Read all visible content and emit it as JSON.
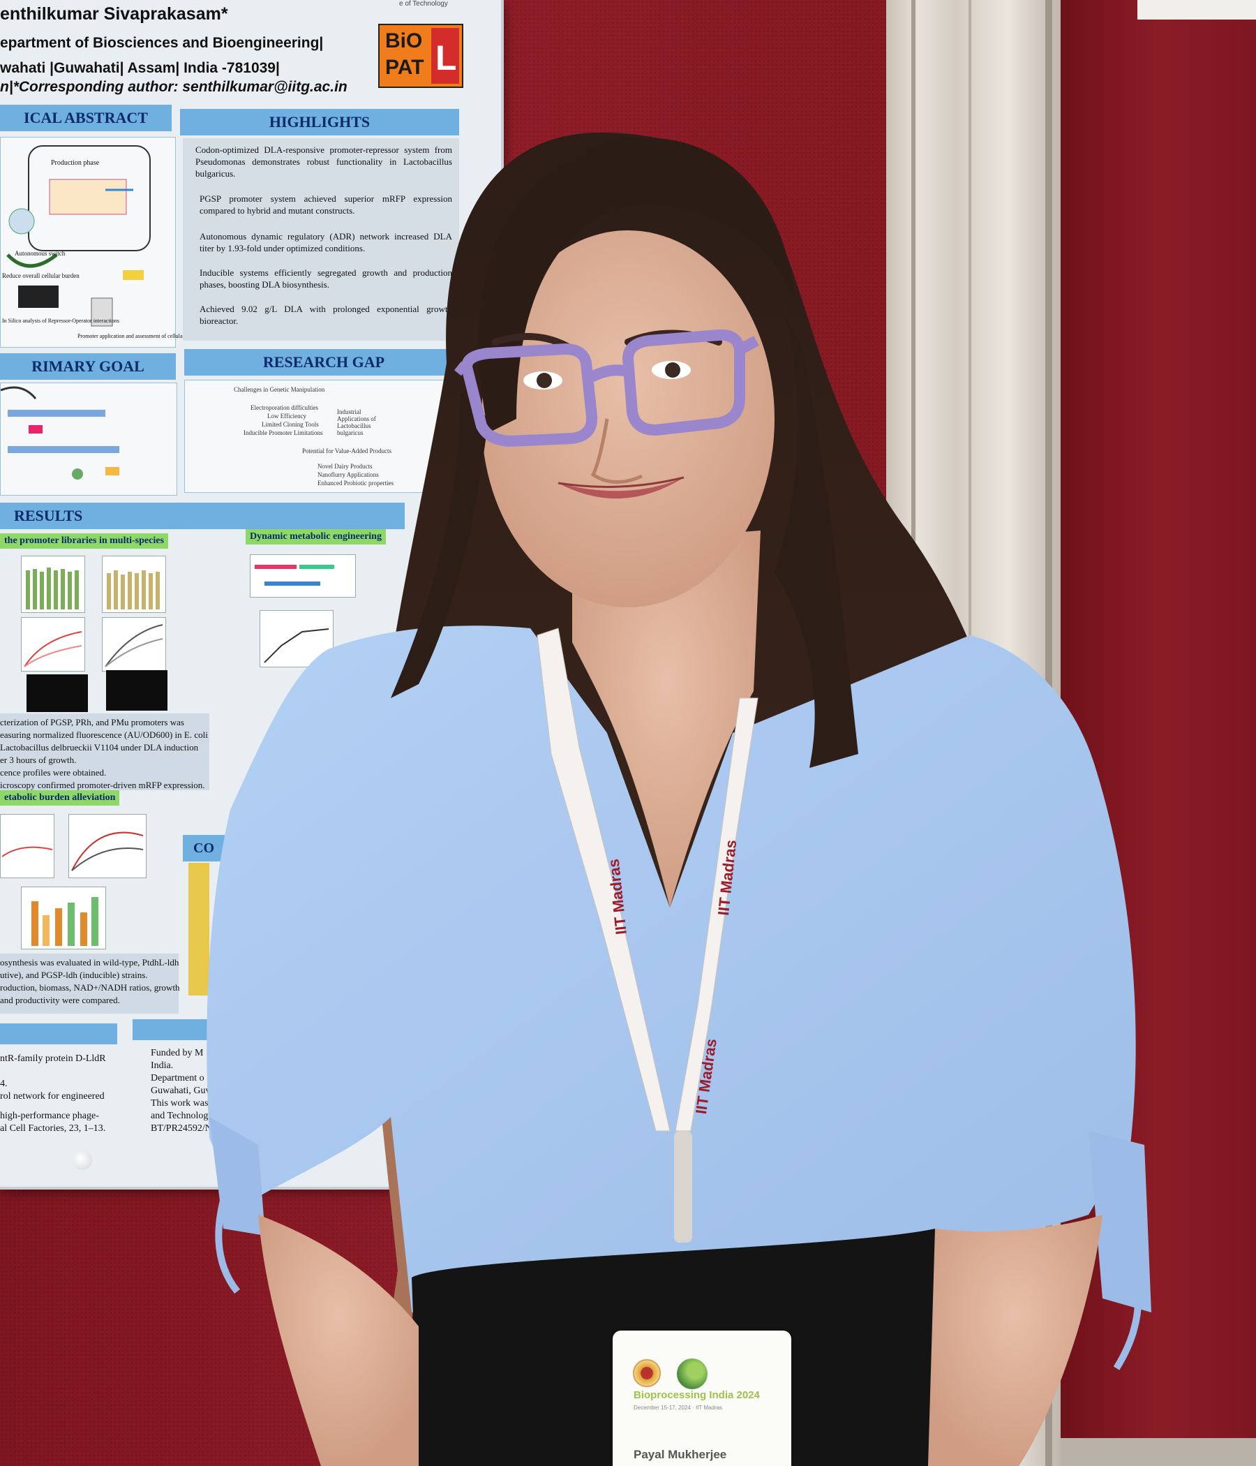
{
  "poster": {
    "author": "enthilkumar Sivaprakasam*",
    "department": "epartment of Biosciences and Bioengineering|",
    "location": "wahati |Guwahati| Assam| India -781039|",
    "corresponding": "n|*Corresponding author: senthilkumar@iitg.ac.in",
    "institute_fragment": "e of Technology",
    "logo": {
      "line1": "BiO",
      "line2": "PAT",
      "letter": "L"
    },
    "sections": {
      "graphical_abstract": "ICAL ABSTRACT",
      "highlights": "HIGHLIGHTS",
      "primary_goal": "RIMARY GOAL",
      "research_gap": "RESEARCH GAP",
      "results": "RESULTS",
      "conclusion_fragment": "CO"
    },
    "abstract_labels": [
      "Production phase",
      "Autonomous switch",
      "Reduce overall cellular burden",
      "In Silico analysis of Repressor-Operator interactions",
      "Promoter application and assessment of cellular burden"
    ],
    "highlights": [
      "Codon-optimized DLA-responsive promoter-repressor system from Pseudomonas demonstrates robust functionality in Lactobacillus bulgaricus.",
      "PGSP promoter system achieved superior mRFP expression compared to hybrid and mutant constructs.",
      "Autonomous dynamic regulatory (ADR) network increased DLA titer by 1.93-fold under optimized conditions.",
      "Inducible systems efficiently segregated growth and production phases, boosting DLA biosynthesis.",
      "Achieved 9.02 g/L DLA with prolonged exponential growth bioreactor."
    ],
    "research_gap_labels": [
      "Challenges in Genetic Manipulation",
      "Electroporation difficulties",
      "Low Efficiency",
      "Limited Cloning Tools",
      "Inducible Promoter Limitations",
      "Industrial Applications of Lactobacillus bulgaricus",
      "Potential for Value-Added Products",
      "Novel Dairy Products",
      "Nanoflurry Applications",
      "Enhanced Probiotic properties"
    ],
    "results_tags": [
      "the promoter libraries in multi-species",
      "Dynamic metabolic engineering",
      "etabolic burden alleviation"
    ],
    "results_caption": [
      "cterization of PGSP, PRh, and PMu promoters was",
      "easuring normalized fluorescence (AU/OD600) in E. coli",
      "Lactobacillus delbrueckii V1104 under DLA induction",
      "er 3 hours of growth.",
      "cence profiles were obtained.",
      "icroscopy confirmed promoter-driven mRFP expression."
    ],
    "burden_caption": [
      "osynthesis was evaluated in wild-type, PtdhL-ldh",
      "utive), and PGSP-ldh (inducible) strains.",
      "roduction, biomass, NAD+/NADH ratios, growth",
      "and productivity were compared."
    ],
    "references": [
      "ntR-family protein D-LldR",
      "4.",
      "rol network for engineered",
      "",
      "high-performance phage-",
      "al Cell Factories, 23, 1–13."
    ],
    "funding": [
      "Funded by M",
      "India.",
      "Department o",
      "Guwahati, Guw",
      "This work was s",
      "and      Technolog",
      "BT/PR24592/NER"
    ]
  },
  "lanyard": {
    "text": "IIT Madras"
  },
  "badge": {
    "event": "Bioprocessing India 2024",
    "dates": "December 15-17, 2024 · IIT Madras",
    "name": "Payal Mukherjee"
  },
  "colors": {
    "board_red": "#8a1a24",
    "poster_blue_header": "#6fb0e0",
    "shirt_blue": "#a9c8f0",
    "hair": "#2a1c17",
    "glasses_lavender": "#9a86cc"
  }
}
